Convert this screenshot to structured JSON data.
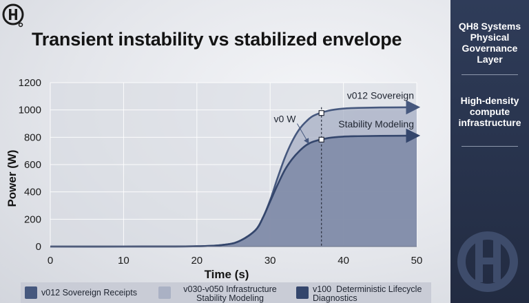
{
  "page": {
    "title": "Transient instability vs stabilized envelope",
    "logo_icon": "qh8-logo-icon"
  },
  "sidebar": {
    "headings": [
      "QH8 Systems Physical Governance Layer",
      "High-density compute infrastructure"
    ]
  },
  "legend": [
    {
      "label": "v012 Sovereign Receipts",
      "color": "#46587e"
    },
    {
      "label": "v030-v050 Infrastructure Stability Modeling",
      "color": "#aab1c4"
    },
    {
      "label": "v100  Deterministic Lifecycle Diagnostics",
      "color": "#34466c"
    }
  ],
  "chart_data": {
    "type": "area",
    "xlabel": "Time (s)",
    "ylabel": "Power (W)",
    "xlim": [
      0,
      50
    ],
    "ylim": [
      0,
      1200
    ],
    "xticks": [
      0,
      10,
      20,
      30,
      40,
      50
    ],
    "yticks": [
      0,
      200,
      400,
      600,
      800,
      1000,
      1200
    ],
    "grid": true,
    "series": [
      {
        "name": "v012 Sovereign",
        "color": "#46587e",
        "x": [
          0,
          10,
          20,
          24,
          26,
          28,
          29,
          30,
          31,
          32,
          33,
          34,
          35,
          36,
          38,
          40,
          42,
          45,
          50
        ],
        "y": [
          0,
          0,
          2,
          15,
          45,
          120,
          210,
          340,
          500,
          650,
          770,
          860,
          920,
          960,
          995,
          1010,
          1015,
          1018,
          1020
        ]
      },
      {
        "name": "Stability Modeling",
        "color": "#34466c",
        "x": [
          0,
          10,
          20,
          24,
          26,
          28,
          29,
          30,
          31,
          32,
          33,
          34,
          35,
          36,
          38,
          40,
          42,
          45,
          50
        ],
        "y": [
          0,
          0,
          2,
          15,
          45,
          120,
          210,
          330,
          450,
          560,
          640,
          700,
          745,
          770,
          795,
          805,
          808,
          810,
          812
        ]
      }
    ],
    "marker_x": 37,
    "annotations": [
      {
        "text": "v0 W",
        "x": 33.5,
        "y": 910,
        "arrow_to": [
          35.2,
          760
        ]
      }
    ]
  }
}
